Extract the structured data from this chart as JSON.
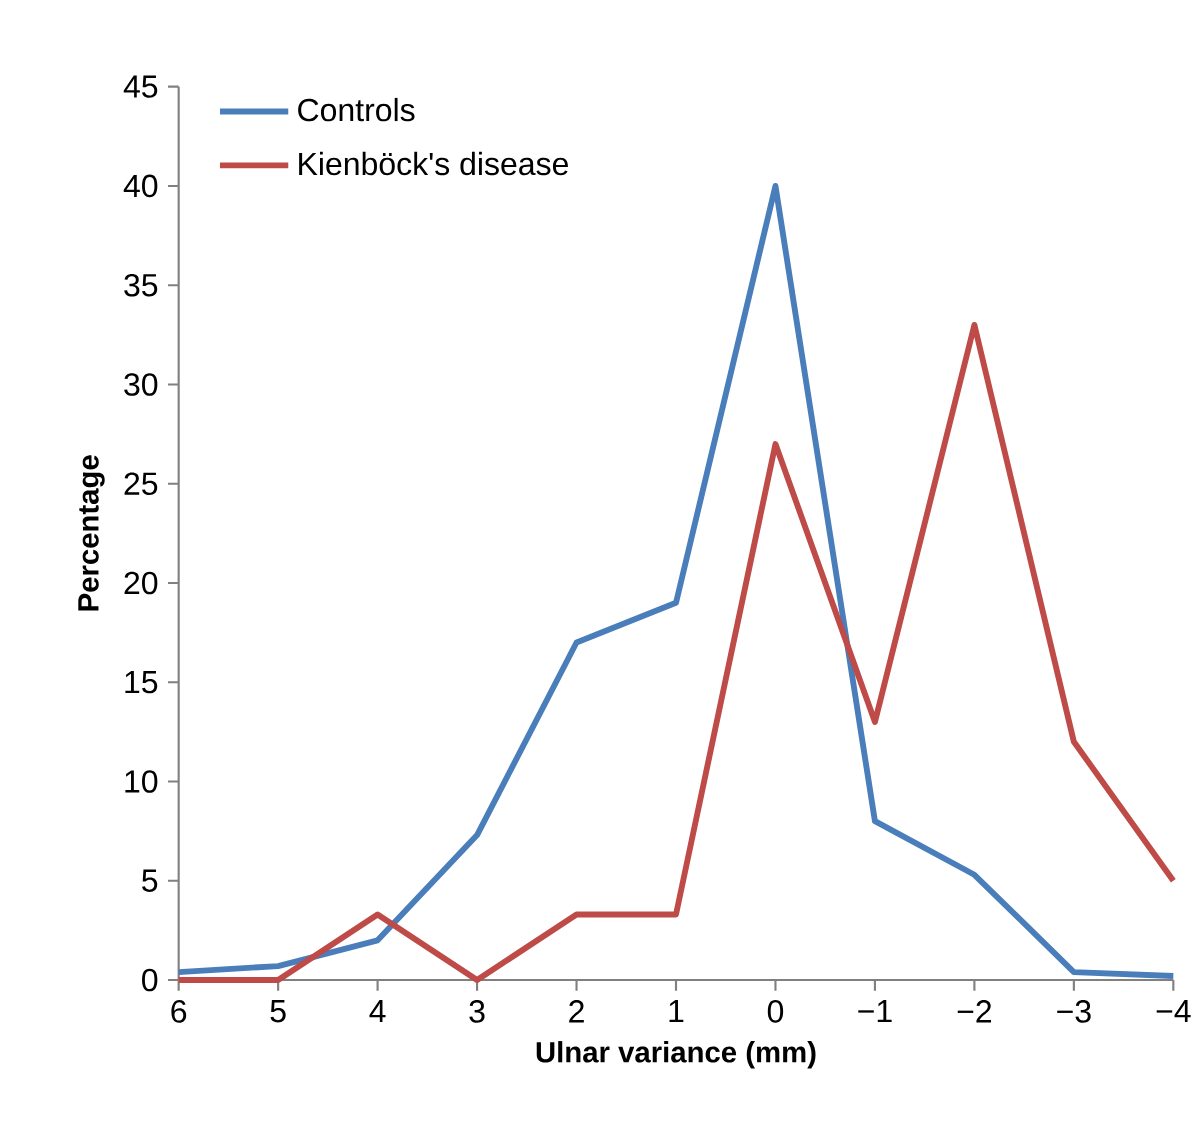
{
  "chart_data": {
    "type": "line",
    "xlabel": "Ulnar variance (mm)",
    "ylabel": "Percentage",
    "categories": [
      "6",
      "5",
      "4",
      "3",
      "2",
      "1",
      "0",
      "−1",
      "−2",
      "−3",
      "−4"
    ],
    "ylim": [
      0,
      45
    ],
    "yticks": [
      0,
      5,
      10,
      15,
      20,
      25,
      30,
      35,
      40,
      45
    ],
    "legend": "top left",
    "marker": "none",
    "line_style": "solid",
    "series": [
      {
        "name": "Controls",
        "color": "#4a7ebb",
        "values": [
          0.4,
          0.7,
          2,
          7.3,
          17,
          19,
          40,
          8,
          5.3,
          0.4,
          0.2
        ]
      },
      {
        "name": "Kienböck's disease",
        "color": "#be4b48",
        "values": [
          0,
          0,
          3.3,
          0,
          3.3,
          3.3,
          27,
          13,
          33,
          12,
          5
        ]
      }
    ]
  }
}
